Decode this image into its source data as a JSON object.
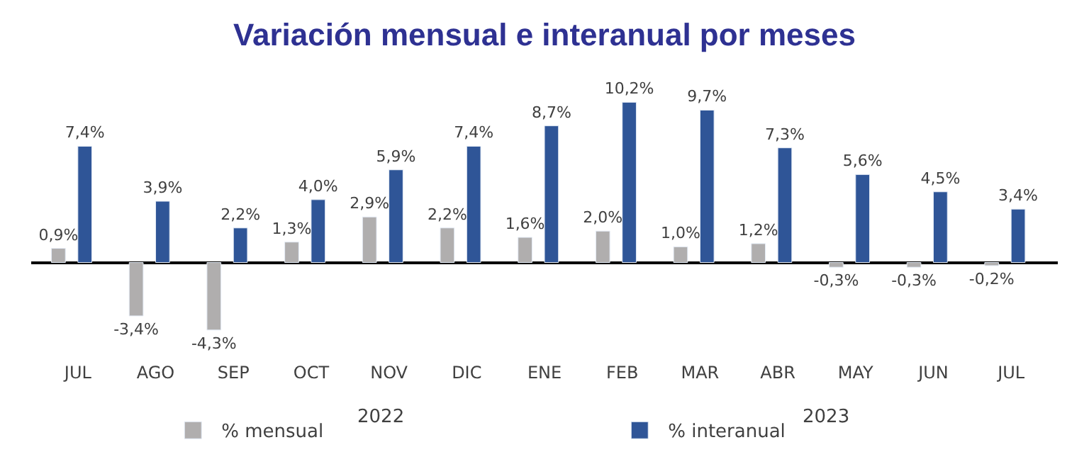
{
  "chart_data": {
    "type": "bar",
    "title": "Variación mensual e interanual por meses",
    "categories": [
      "JUL",
      "AGO",
      "SEP",
      "OCT",
      "NOV",
      "DIC",
      "ENE",
      "FEB",
      "MAR",
      "ABR",
      "MAY",
      "JUN",
      "JUL"
    ],
    "series": [
      {
        "name": "% mensual",
        "color": "#b0aeae",
        "values": [
          0.9,
          -3.4,
          -4.3,
          1.3,
          2.9,
          2.2,
          1.6,
          2.0,
          1.0,
          1.2,
          -0.3,
          -0.3,
          -0.2
        ],
        "value_labels": [
          "0,9%",
          "-3,4%",
          "-4,3%",
          "1,3%",
          "2,9%",
          "2,2%",
          "1,6%",
          "2,0%",
          "1,0%",
          "1,2%",
          "-0,3%",
          "-0,3%",
          "-0,2%"
        ]
      },
      {
        "name": "% interanual",
        "color": "#2f5597",
        "values": [
          7.4,
          3.9,
          2.2,
          4.0,
          5.9,
          7.4,
          8.7,
          10.2,
          9.7,
          7.3,
          5.6,
          4.5,
          3.4
        ],
        "value_labels": [
          "7,4%",
          "3,9%",
          "2,2%",
          "4,0%",
          "5,9%",
          "7,4%",
          "8,7%",
          "10,2%",
          "9,7%",
          "7,3%",
          "5,6%",
          "4,5%",
          "3,4%"
        ]
      }
    ],
    "annotations": [
      "2022",
      "2023"
    ],
    "legend": "bottom"
  }
}
